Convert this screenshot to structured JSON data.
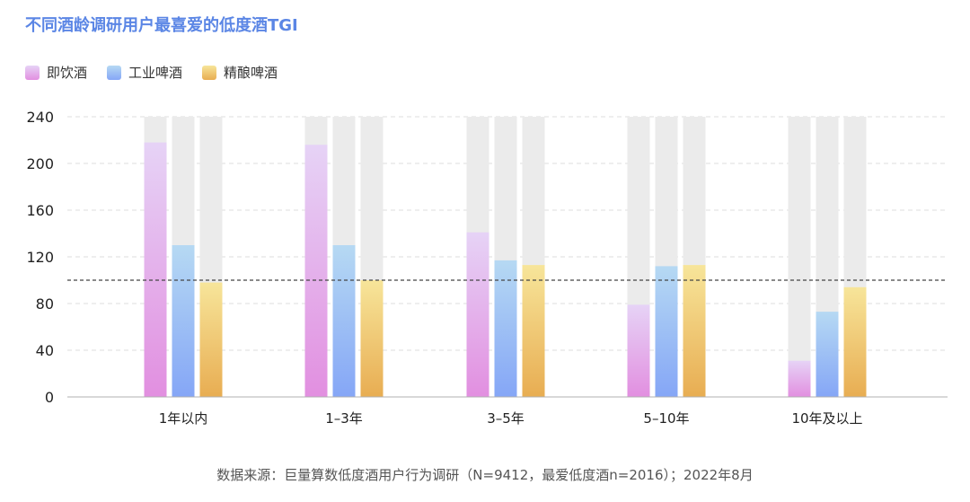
{
  "chart_data": {
    "type": "bar",
    "title": "不同酒龄调研用户最喜爱的低度酒TGI",
    "categories": [
      "1年以内",
      "1–3年",
      "3–5年",
      "5–10年",
      "10年及以上"
    ],
    "series": [
      {
        "name": "即饮酒",
        "values": [
          218,
          216,
          141,
          79,
          31
        ],
        "color_top": "#e6d3f6",
        "color_bottom": "#e28fe0"
      },
      {
        "name": "工业啤酒",
        "values": [
          130,
          130,
          117,
          112,
          73
        ],
        "color_top": "#b6d9f3",
        "color_bottom": "#85a6f6"
      },
      {
        "name": "精酿啤酒",
        "values": [
          98,
          100,
          113,
          113,
          94
        ],
        "color_top": "#f7e59a",
        "color_bottom": "#e8ad52"
      }
    ],
    "ylim": [
      0,
      240
    ],
    "yticks": [
      0,
      40,
      80,
      120,
      160,
      200,
      240
    ],
    "reference_line": 100,
    "background_bar_color": "#ebebeb",
    "grid": true,
    "legend_position": "top-left"
  },
  "source_note": "数据来源：巨量算数低度酒用户行为调研（N=9412，最爱低度酒n=2016）；2022年8月"
}
